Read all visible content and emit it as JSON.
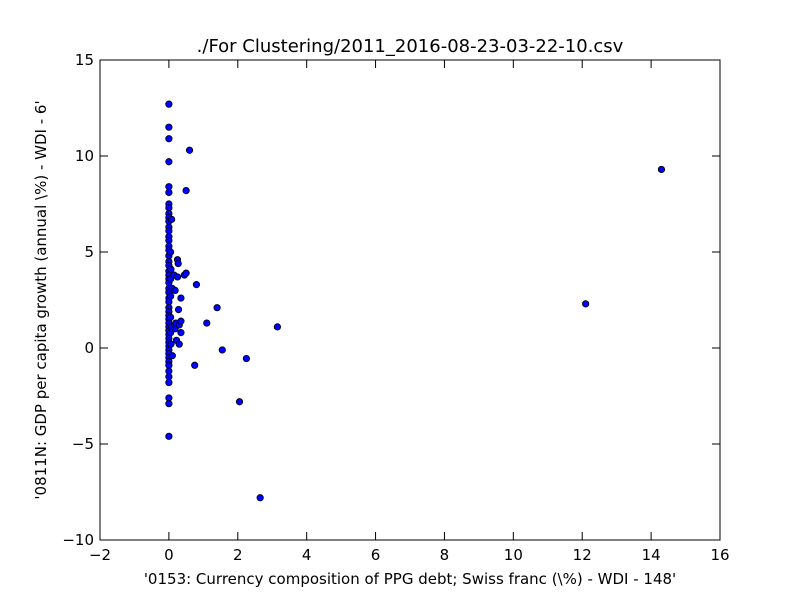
{
  "chart_data": {
    "type": "scatter",
    "title": "./For Clustering/2011_2016-08-23-03-22-10.csv",
    "xlabel": "'0153: Currency composition of PPG debt; Swiss franc  (\\%) - WDI - 148'",
    "ylabel": "'0811N: GDP per capita growth  (annual \\%) - WDI - 6'",
    "xlim": [
      -2,
      16
    ],
    "ylim": [
      -10,
      15
    ],
    "xticks": [
      -2,
      0,
      2,
      4,
      6,
      8,
      10,
      12,
      14,
      16
    ],
    "yticks": [
      -10,
      -5,
      0,
      5,
      10,
      15
    ],
    "xtick_labels": [
      "−2",
      "0",
      "2",
      "4",
      "6",
      "8",
      "10",
      "12",
      "14",
      "16"
    ],
    "ytick_labels": [
      "−10",
      "−5",
      "0",
      "5",
      "10",
      "15"
    ],
    "grid": false,
    "marker_color": "#0000ff",
    "marker_edge": "#000000",
    "points": [
      {
        "x": 0.0,
        "y": 12.7
      },
      {
        "x": 0.0,
        "y": 11.5
      },
      {
        "x": 0.0,
        "y": 10.9
      },
      {
        "x": 0.0,
        "y": 9.7
      },
      {
        "x": 0.0,
        "y": 8.4
      },
      {
        "x": 0.0,
        "y": 8.1
      },
      {
        "x": 0.0,
        "y": 7.5
      },
      {
        "x": 0.0,
        "y": 7.3
      },
      {
        "x": 0.0,
        "y": 7.0
      },
      {
        "x": 0.0,
        "y": 6.8
      },
      {
        "x": 0.0,
        "y": 6.6
      },
      {
        "x": 0.0,
        "y": 6.3
      },
      {
        "x": 0.0,
        "y": 6.1
      },
      {
        "x": 0.0,
        "y": 5.8
      },
      {
        "x": 0.0,
        "y": 5.6
      },
      {
        "x": 0.0,
        "y": 5.3
      },
      {
        "x": 0.0,
        "y": 5.1
      },
      {
        "x": 0.0,
        "y": 4.8
      },
      {
        "x": 0.0,
        "y": 4.5
      },
      {
        "x": 0.0,
        "y": 4.3
      },
      {
        "x": 0.0,
        "y": 4.0
      },
      {
        "x": 0.0,
        "y": 3.8
      },
      {
        "x": 0.0,
        "y": 3.6
      },
      {
        "x": 0.0,
        "y": 3.4
      },
      {
        "x": 0.0,
        "y": 3.1
      },
      {
        "x": 0.0,
        "y": 2.9
      },
      {
        "x": 0.0,
        "y": 2.6
      },
      {
        "x": 0.0,
        "y": 2.4
      },
      {
        "x": 0.0,
        "y": 2.1
      },
      {
        "x": 0.0,
        "y": 1.9
      },
      {
        "x": 0.0,
        "y": 1.7
      },
      {
        "x": 0.0,
        "y": 1.5
      },
      {
        "x": 0.0,
        "y": 1.3
      },
      {
        "x": 0.0,
        "y": 1.1
      },
      {
        "x": 0.0,
        "y": 0.9
      },
      {
        "x": 0.0,
        "y": 0.7
      },
      {
        "x": 0.0,
        "y": 0.5
      },
      {
        "x": 0.0,
        "y": 0.3
      },
      {
        "x": 0.0,
        "y": 0.1
      },
      {
        "x": 0.0,
        "y": -0.1
      },
      {
        "x": 0.0,
        "y": -0.3
      },
      {
        "x": 0.0,
        "y": -0.5
      },
      {
        "x": 0.0,
        "y": -0.7
      },
      {
        "x": 0.0,
        "y": -0.9
      },
      {
        "x": 0.0,
        "y": -1.2
      },
      {
        "x": 0.0,
        "y": -1.5
      },
      {
        "x": 0.0,
        "y": -1.8
      },
      {
        "x": 0.0,
        "y": -2.6
      },
      {
        "x": 0.0,
        "y": -2.9
      },
      {
        "x": 0.0,
        "y": -4.6
      },
      {
        "x": 0.08,
        "y": 6.7
      },
      {
        "x": 0.05,
        "y": 5.0
      },
      {
        "x": 0.06,
        "y": 4.1
      },
      {
        "x": 0.05,
        "y": 3.6
      },
      {
        "x": 0.1,
        "y": 3.1
      },
      {
        "x": 0.05,
        "y": 2.7
      },
      {
        "x": 0.05,
        "y": 1.6
      },
      {
        "x": 0.08,
        "y": 1.1
      },
      {
        "x": 0.05,
        "y": 0.8
      },
      {
        "x": 0.06,
        "y": 0.2
      },
      {
        "x": 0.1,
        "y": -0.4
      },
      {
        "x": 0.15,
        "y": 3.8
      },
      {
        "x": 0.18,
        "y": 3.0
      },
      {
        "x": 0.2,
        "y": 1.3
      },
      {
        "x": 0.18,
        "y": 1.0
      },
      {
        "x": 0.22,
        "y": 0.4
      },
      {
        "x": 0.25,
        "y": 4.6
      },
      {
        "x": 0.27,
        "y": 4.4
      },
      {
        "x": 0.25,
        "y": 3.7
      },
      {
        "x": 0.28,
        "y": 2.0
      },
      {
        "x": 0.3,
        "y": 1.2
      },
      {
        "x": 0.3,
        "y": 0.2
      },
      {
        "x": 0.35,
        "y": 2.6
      },
      {
        "x": 0.35,
        "y": 1.4
      },
      {
        "x": 0.35,
        "y": 0.8
      },
      {
        "x": 0.45,
        "y": 3.8
      },
      {
        "x": 0.5,
        "y": 3.9
      },
      {
        "x": 0.5,
        "y": 8.2
      },
      {
        "x": 0.6,
        "y": 10.3
      },
      {
        "x": 0.75,
        "y": -0.9
      },
      {
        "x": 0.8,
        "y": 3.3
      },
      {
        "x": 1.1,
        "y": 1.3
      },
      {
        "x": 1.4,
        "y": 2.1
      },
      {
        "x": 1.55,
        "y": -0.1
      },
      {
        "x": 2.05,
        "y": -2.8
      },
      {
        "x": 2.25,
        "y": -0.55
      },
      {
        "x": 2.65,
        "y": -7.8
      },
      {
        "x": 3.15,
        "y": 1.1
      },
      {
        "x": 12.1,
        "y": 2.3
      },
      {
        "x": 14.3,
        "y": 9.3
      }
    ]
  }
}
